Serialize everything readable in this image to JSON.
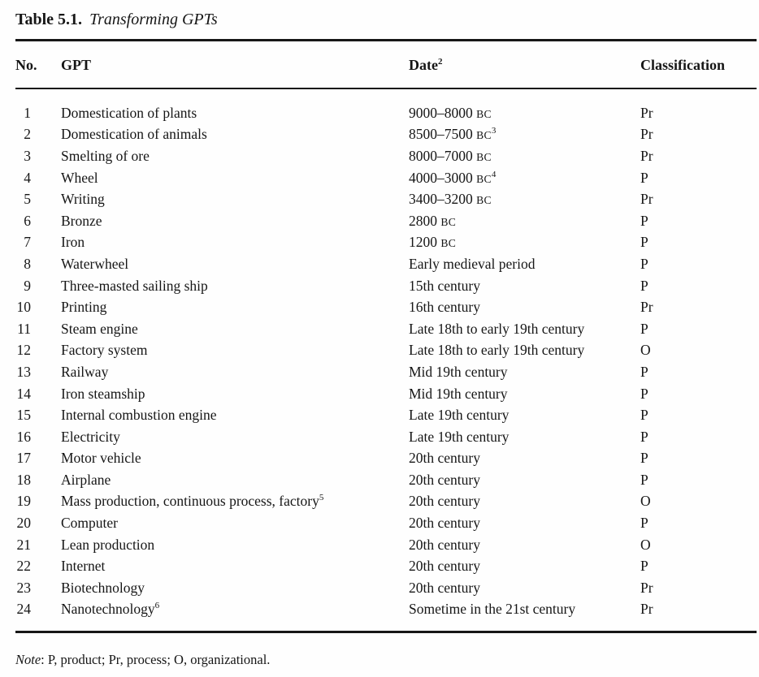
{
  "title": {
    "label": "Table 5.1.",
    "caption": "Transforming GPTs"
  },
  "columns": {
    "no": "No.",
    "gpt": "GPT",
    "date": "Date",
    "date_sup": "2",
    "classification": "Classification"
  },
  "rows": [
    {
      "no": "1",
      "gpt": "Domestication of plants",
      "gpt_sup": "",
      "date": "9000–8000",
      "bc": "BC",
      "date_sup": "",
      "cls": "Pr"
    },
    {
      "no": "2",
      "gpt": "Domestication of animals",
      "gpt_sup": "",
      "date": "8500–7500",
      "bc": "BC",
      "date_sup": "3",
      "cls": "Pr"
    },
    {
      "no": "3",
      "gpt": "Smelting of ore",
      "gpt_sup": "",
      "date": "8000–7000",
      "bc": "BC",
      "date_sup": "",
      "cls": "Pr"
    },
    {
      "no": "4",
      "gpt": "Wheel",
      "gpt_sup": "",
      "date": "4000–3000",
      "bc": "BC",
      "date_sup": "4",
      "cls": "P"
    },
    {
      "no": "5",
      "gpt": "Writing",
      "gpt_sup": "",
      "date": "3400–3200",
      "bc": "BC",
      "date_sup": "",
      "cls": "Pr"
    },
    {
      "no": "6",
      "gpt": "Bronze",
      "gpt_sup": "",
      "date": "2800",
      "bc": "BC",
      "date_sup": "",
      "cls": "P"
    },
    {
      "no": "7",
      "gpt": "Iron",
      "gpt_sup": "",
      "date": "1200",
      "bc": "BC",
      "date_sup": "",
      "cls": "P"
    },
    {
      "no": "8",
      "gpt": "Waterwheel",
      "gpt_sup": "",
      "date": "Early medieval period",
      "bc": "",
      "date_sup": "",
      "cls": "P"
    },
    {
      "no": "9",
      "gpt": "Three-masted sailing ship",
      "gpt_sup": "",
      "date": "15th century",
      "bc": "",
      "date_sup": "",
      "cls": "P"
    },
    {
      "no": "10",
      "gpt": "Printing",
      "gpt_sup": "",
      "date": "16th century",
      "bc": "",
      "date_sup": "",
      "cls": "Pr"
    },
    {
      "no": "11",
      "gpt": "Steam engine",
      "gpt_sup": "",
      "date": "Late 18th to early 19th century",
      "bc": "",
      "date_sup": "",
      "cls": "P"
    },
    {
      "no": "12",
      "gpt": "Factory system",
      "gpt_sup": "",
      "date": "Late 18th to early 19th century",
      "bc": "",
      "date_sup": "",
      "cls": "O"
    },
    {
      "no": "13",
      "gpt": "Railway",
      "gpt_sup": "",
      "date": "Mid 19th century",
      "bc": "",
      "date_sup": "",
      "cls": "P"
    },
    {
      "no": "14",
      "gpt": "Iron steamship",
      "gpt_sup": "",
      "date": "Mid 19th century",
      "bc": "",
      "date_sup": "",
      "cls": "P"
    },
    {
      "no": "15",
      "gpt": "Internal combustion engine",
      "gpt_sup": "",
      "date": "Late 19th century",
      "bc": "",
      "date_sup": "",
      "cls": "P"
    },
    {
      "no": "16",
      "gpt": "Electricity",
      "gpt_sup": "",
      "date": "Late 19th century",
      "bc": "",
      "date_sup": "",
      "cls": "P"
    },
    {
      "no": "17",
      "gpt": "Motor vehicle",
      "gpt_sup": "",
      "date": "20th century",
      "bc": "",
      "date_sup": "",
      "cls": "P"
    },
    {
      "no": "18",
      "gpt": "Airplane",
      "gpt_sup": "",
      "date": "20th century",
      "bc": "",
      "date_sup": "",
      "cls": "P"
    },
    {
      "no": "19",
      "gpt": "Mass production, continuous process, factory",
      "gpt_sup": "5",
      "date": "20th century",
      "bc": "",
      "date_sup": "",
      "cls": "O"
    },
    {
      "no": "20",
      "gpt": "Computer",
      "gpt_sup": "",
      "date": "20th century",
      "bc": "",
      "date_sup": "",
      "cls": "P"
    },
    {
      "no": "21",
      "gpt": "Lean production",
      "gpt_sup": "",
      "date": "20th century",
      "bc": "",
      "date_sup": "",
      "cls": "O"
    },
    {
      "no": "22",
      "gpt": "Internet",
      "gpt_sup": "",
      "date": "20th century",
      "bc": "",
      "date_sup": "",
      "cls": "P"
    },
    {
      "no": "23",
      "gpt": "Biotechnology",
      "gpt_sup": "",
      "date": "20th century",
      "bc": "",
      "date_sup": "",
      "cls": "Pr"
    },
    {
      "no": "24",
      "gpt": "Nanotechnology",
      "gpt_sup": "6",
      "date": "Sometime in the 21st century",
      "bc": "",
      "date_sup": "",
      "cls": "Pr"
    }
  ],
  "note": {
    "label": "Note",
    "text": ": P, product; Pr, process; O, organizational."
  }
}
